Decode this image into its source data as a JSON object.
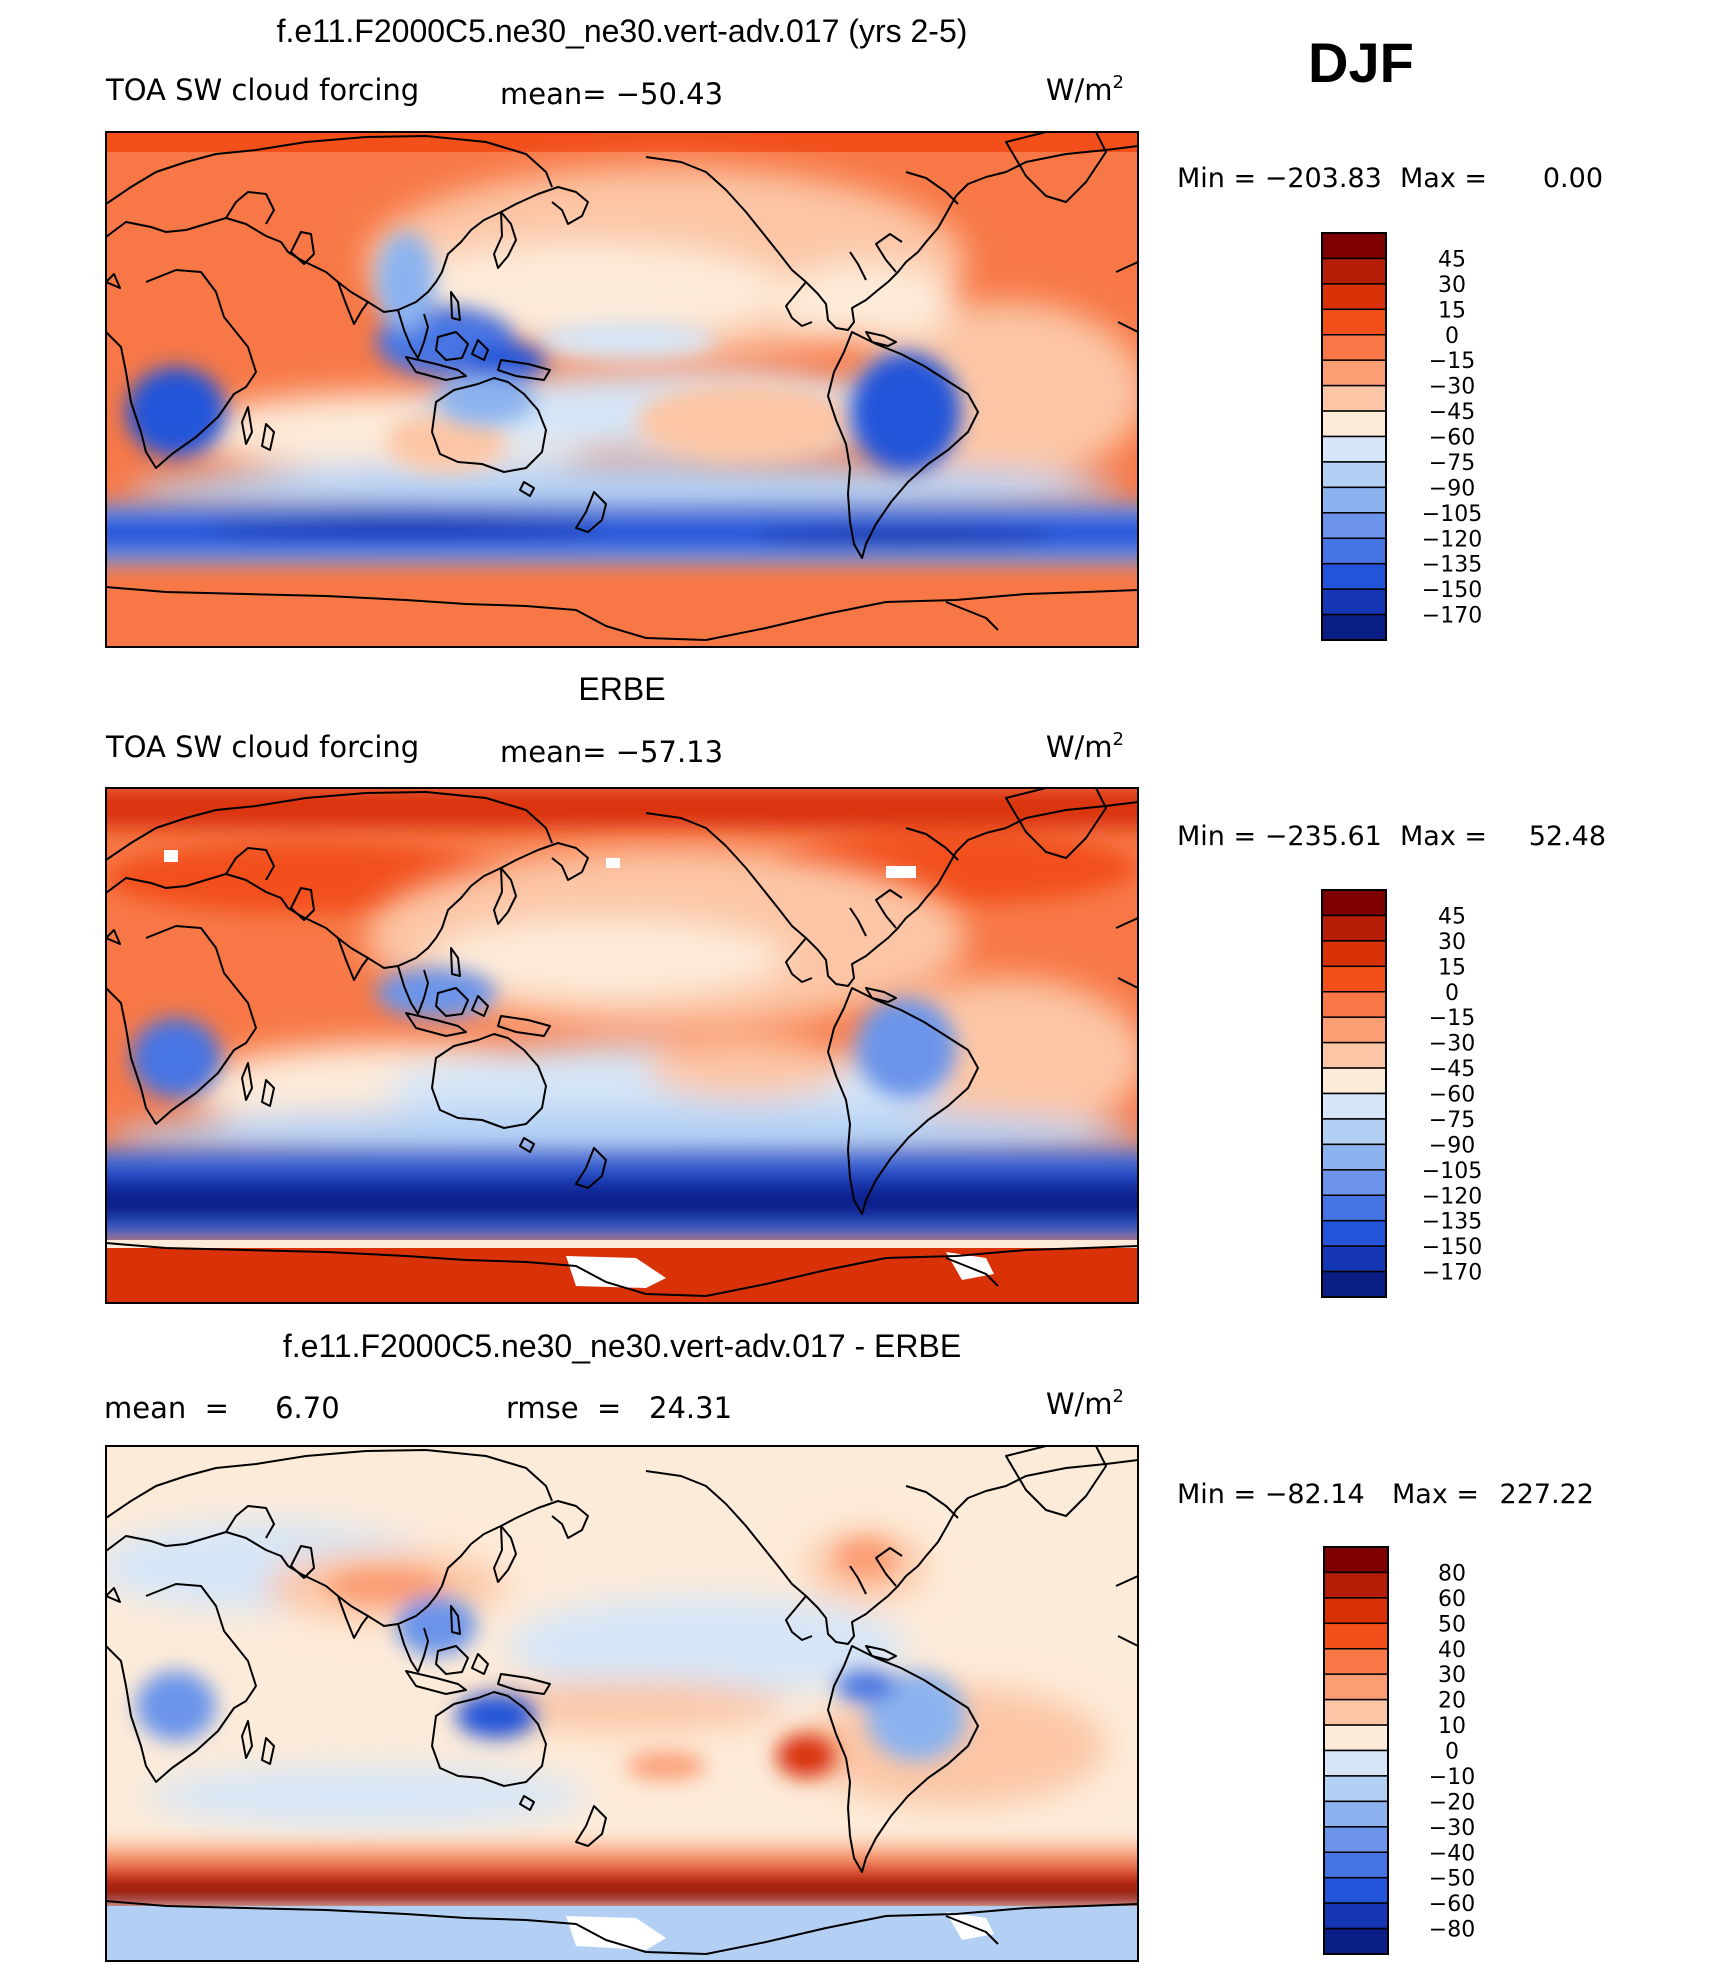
{
  "header": {
    "season": "DJF"
  },
  "panels": [
    {
      "id": "model",
      "title": "f.e11.F2000C5.ne30_ne30.vert-adv.017 (yrs 2-5)",
      "left_label": "TOA SW cloud forcing",
      "mid_label": "mean=  −50.43",
      "units": "W/m",
      "units_sup": "2",
      "minmax": {
        "min_label": "Min  =  −203.83",
        "max_label": "Max  =",
        "max_value": "0.00"
      },
      "colorbar": {
        "levels": [
          "45",
          "30",
          "15",
          "0",
          "−15",
          "−30",
          "−45",
          "−60",
          "−75",
          "−90",
          "−105",
          "−120",
          "−135",
          "−150",
          "−170"
        ],
        "colors": [
          "#7f0000",
          "#b51d07",
          "#d93208",
          "#f24f1a",
          "#f77846",
          "#fb9e74",
          "#fcc6a6",
          "#fdebd9",
          "#d6e6f8",
          "#b3d0f4",
          "#8cb3ef",
          "#6b94ea",
          "#4675e3",
          "#2454d9",
          "#1537b6",
          "#0a1e86"
        ]
      }
    },
    {
      "id": "obs",
      "title": "ERBE",
      "left_label": "TOA SW cloud forcing",
      "mid_label": "mean=  −57.13",
      "units": "W/m",
      "units_sup": "2",
      "minmax": {
        "min_label": "Min  =  −235.61",
        "max_label": "Max  =",
        "max_value": "52.48"
      },
      "colorbar": {
        "levels": [
          "45",
          "30",
          "15",
          "0",
          "−15",
          "−30",
          "−45",
          "−60",
          "−75",
          "−90",
          "−105",
          "−120",
          "−135",
          "−150",
          "−170"
        ],
        "colors": [
          "#7f0000",
          "#b51d07",
          "#d93208",
          "#f24f1a",
          "#f77846",
          "#fb9e74",
          "#fcc6a6",
          "#fdebd9",
          "#d6e6f8",
          "#b3d0f4",
          "#8cb3ef",
          "#6b94ea",
          "#4675e3",
          "#2454d9",
          "#1537b6",
          "#0a1e86"
        ]
      }
    },
    {
      "id": "diff",
      "title": "f.e11.F2000C5.ne30_ne30.vert-adv.017 - ERBE",
      "left_label": "mean  =     6.70",
      "mid_label": "rmse  =   24.31",
      "units": "W/m",
      "units_sup": "2",
      "minmax": {
        "min_label": "Min  =  −82.14",
        "max_label": "Max  =",
        "max_value": "227.22"
      },
      "colorbar": {
        "levels": [
          "80",
          "60",
          "50",
          "40",
          "30",
          "20",
          "10",
          "0",
          "−10",
          "−20",
          "−30",
          "−40",
          "−50",
          "−60",
          "−80"
        ],
        "colors": [
          "#7f0000",
          "#b51d07",
          "#d93208",
          "#f24f1a",
          "#f77846",
          "#fb9e74",
          "#fcc6a6",
          "#fdebd9",
          "#d6e6f8",
          "#b3d0f4",
          "#8cb3ef",
          "#6b94ea",
          "#4675e3",
          "#2454d9",
          "#1537b6",
          "#0a1e86"
        ]
      }
    }
  ]
}
